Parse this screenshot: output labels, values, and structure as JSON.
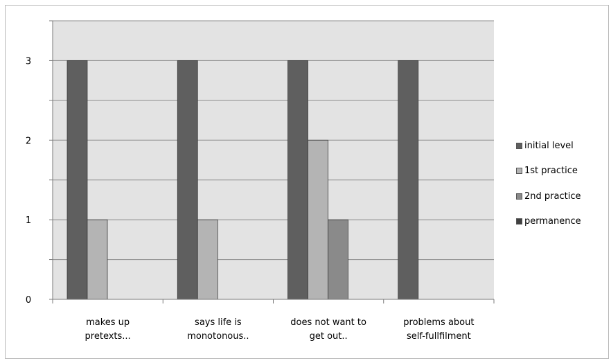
{
  "chart_data": {
    "type": "bar",
    "title": "",
    "xlabel": "",
    "ylabel": "",
    "categories": [
      [
        "makes up",
        "pretexts..."
      ],
      [
        "says life is",
        "monotonous.."
      ],
      [
        "does not want to",
        "get out.."
      ],
      [
        "problems about",
        "self-fullfilment"
      ]
    ],
    "series": [
      {
        "name": "initial level",
        "color": "#5f5f5f",
        "values": [
          3,
          3,
          3,
          3
        ]
      },
      {
        "name": "1st practice",
        "color": "#b4b4b4",
        "values": [
          1,
          1,
          2,
          0
        ]
      },
      {
        "name": "2nd practice",
        "color": "#8a8a8a",
        "values": [
          0,
          0,
          1,
          0
        ]
      },
      {
        "name": "permanence",
        "color": "#404040",
        "values": [
          0,
          0,
          0,
          0
        ]
      }
    ],
    "ylim": [
      0,
      3.5
    ],
    "yticks": [
      0,
      1,
      2,
      3
    ],
    "ytick_labels": [
      "0",
      "1",
      "2",
      "3"
    ],
    "grid": "horizontal",
    "legend_position": "right",
    "plot_background": "#e3e3e3"
  }
}
